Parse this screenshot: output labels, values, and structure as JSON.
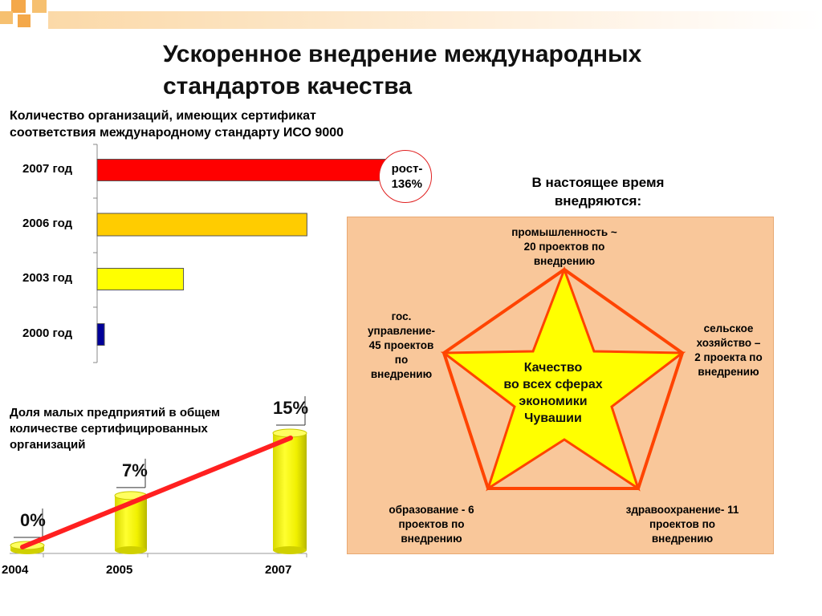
{
  "title": "Ускоренное внедрение международных стандартов качества",
  "iso_chart": {
    "caption_line1": "Количество организаций, имеющих сертификат",
    "caption_line2": "соответствия международному стандарту ИСО 9000",
    "growth_line1": "рост-",
    "growth_line2": "136%"
  },
  "chart_data": [
    {
      "type": "bar",
      "orientation": "horizontal",
      "categories": [
        "2007 год",
        "2006 год",
        "2003 год",
        "2000 год"
      ],
      "values": [
        360,
        260,
        107,
        9
      ],
      "colors": [
        "#ff0000",
        "#ffcc00",
        "#ffff00",
        "#000099"
      ],
      "annotation": "рост-136%"
    },
    {
      "type": "line",
      "title": "Доля малых предприятий в общем количестве сертифицированных организаций",
      "x": [
        "2004",
        "2005",
        "2007"
      ],
      "values": [
        0,
        7,
        15
      ],
      "value_labels": [
        "0%",
        "7%",
        "15%"
      ],
      "bar_color": "#ffff00",
      "line_color": "#ff2020"
    }
  ],
  "share_chart": {
    "caption_line1": "Доля малых предприятий в общем",
    "caption_line2": "количестве сертифицированных",
    "caption_line3": "организаций"
  },
  "star": {
    "heading_line1": "В настоящее время",
    "heading_line2": "внедряются:",
    "center": [
      "Качество",
      "во всех сферах",
      "экономики",
      "Чувашии"
    ],
    "sectors": {
      "top": [
        "промышленность ~",
        "20 проектов по",
        "внедрению"
      ],
      "left": [
        "гос.",
        "управление-",
        "45 проектов",
        "по",
        "внедрению"
      ],
      "right": [
        "сельское",
        "хозяйство –",
        "2 проекта по",
        "внедрению"
      ],
      "bottom_left": [
        "образование - 6",
        "проектов по",
        "внедрению"
      ],
      "bottom_right": [
        "здравоохранение- 11",
        "проектов по",
        "внедрению"
      ]
    },
    "colors": {
      "panel": "#f9c79a",
      "star": "#ffff00",
      "outline": "#ff4400"
    }
  }
}
